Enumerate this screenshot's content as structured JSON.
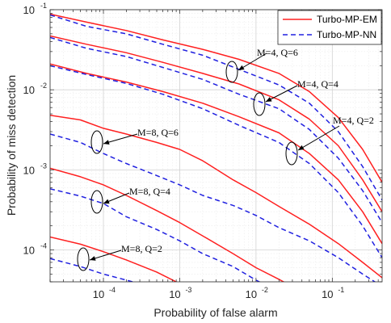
{
  "chart_data": {
    "type": "line",
    "title": "",
    "xlabel": "Probability of false alarm",
    "ylabel": "Probability of miss detection",
    "x_scale": "log",
    "y_scale": "log",
    "xlim": [
      2e-05,
      0.45
    ],
    "ylim": [
      4e-05,
      0.1
    ],
    "grid": true,
    "legend_position": "top-right",
    "x_ticks": [
      {
        "value": 0.0001,
        "base": "10",
        "exp": "-4"
      },
      {
        "value": 0.001,
        "base": "10",
        "exp": "-3"
      },
      {
        "value": 0.01,
        "base": "10",
        "exp": "-2"
      },
      {
        "value": 0.1,
        "base": "10",
        "exp": "-1"
      }
    ],
    "y_ticks": [
      {
        "value": 0.0001,
        "base": "10",
        "exp": "-4"
      },
      {
        "value": 0.001,
        "base": "10",
        "exp": "-3"
      },
      {
        "value": 0.01,
        "base": "10",
        "exp": "-2"
      },
      {
        "value": 0.1,
        "base": "10",
        "exp": "-1"
      }
    ],
    "legend": [
      {
        "label": "Turbo-MP-EM",
        "color": "#ff2020",
        "style": "solid"
      },
      {
        "label": "Turbo-MP-NN",
        "color": "#2020e0",
        "style": "dashed"
      }
    ],
    "series": [
      {
        "name": "Turbo-MP-EM",
        "config": "M=4, Q=6",
        "color": "#ff2020",
        "style": "solid",
        "x": [
          2e-05,
          6e-05,
          0.0002,
          0.0006,
          0.002,
          0.006,
          0.02,
          0.05,
          0.12,
          0.25,
          0.45
        ],
        "y": [
          0.088,
          0.07,
          0.055,
          0.042,
          0.032,
          0.024,
          0.016,
          0.0095,
          0.0045,
          0.0018,
          0.0007
        ]
      },
      {
        "name": "Turbo-MP-NN",
        "config": "M=4, Q=6",
        "color": "#2020e0",
        "style": "dashed",
        "x": [
          2e-05,
          6e-05,
          0.0002,
          0.0006,
          0.002,
          0.006,
          0.02,
          0.05,
          0.12,
          0.25,
          0.45
        ],
        "y": [
          0.086,
          0.062,
          0.05,
          0.037,
          0.027,
          0.018,
          0.0115,
          0.0068,
          0.003,
          0.0011,
          0.00042
        ]
      },
      {
        "name": "Turbo-MP-EM",
        "config": "M=4, Q=4",
        "color": "#ff2020",
        "style": "solid",
        "x": [
          2e-05,
          6e-05,
          0.0002,
          0.0006,
          0.002,
          0.006,
          0.02,
          0.05,
          0.12,
          0.25,
          0.45
        ],
        "y": [
          0.047,
          0.037,
          0.029,
          0.022,
          0.016,
          0.0118,
          0.0075,
          0.0043,
          0.002,
          0.00075,
          0.0003
        ]
      },
      {
        "name": "Turbo-MP-NN",
        "config": "M=4, Q=4",
        "color": "#2020e0",
        "style": "dashed",
        "x": [
          2e-05,
          6e-05,
          0.0002,
          0.0006,
          0.002,
          0.006,
          0.02,
          0.05,
          0.12,
          0.25,
          0.45
        ],
        "y": [
          0.045,
          0.033,
          0.026,
          0.019,
          0.0135,
          0.0088,
          0.0058,
          0.0032,
          0.0014,
          0.00055,
          0.00022
        ]
      },
      {
        "name": "Turbo-MP-EM",
        "config": "M=4, Q=2",
        "color": "#ff2020",
        "style": "solid",
        "x": [
          2e-05,
          6e-05,
          0.0002,
          0.0006,
          0.002,
          0.006,
          0.02,
          0.05,
          0.12,
          0.25,
          0.45
        ],
        "y": [
          0.021,
          0.016,
          0.0125,
          0.0095,
          0.0068,
          0.0046,
          0.0029,
          0.0016,
          0.00075,
          0.0003,
          0.00012
        ]
      },
      {
        "name": "Turbo-MP-NN",
        "config": "M=4, Q=2",
        "color": "#2020e0",
        "style": "dashed",
        "x": [
          2e-05,
          6e-05,
          0.0002,
          0.0006,
          0.002,
          0.006,
          0.02,
          0.05,
          0.12,
          0.25,
          0.45
        ],
        "y": [
          0.02,
          0.0155,
          0.012,
          0.0088,
          0.0058,
          0.0036,
          0.0022,
          0.0012,
          0.00052,
          0.0002,
          8e-05
        ]
      },
      {
        "name": "Turbo-MP-EM",
        "config": "M=8, Q=6",
        "color": "#ff2020",
        "style": "solid",
        "x": [
          2e-05,
          5e-05,
          0.0001,
          0.0002,
          0.0005,
          0.001,
          0.002,
          0.005,
          0.01,
          0.02,
          0.05,
          0.12,
          0.25,
          0.45
        ],
        "y": [
          0.0048,
          0.0042,
          0.0033,
          0.0028,
          0.0022,
          0.0018,
          0.0013,
          0.00075,
          0.00052,
          0.00035,
          0.00021,
          0.00012,
          7e-05,
          4.5e-05
        ]
      },
      {
        "name": "Turbo-MP-NN",
        "config": "M=8, Q=6",
        "color": "#2020e0",
        "style": "dashed",
        "x": [
          2e-05,
          5e-05,
          0.0001,
          0.0002,
          0.0005,
          0.001,
          0.002,
          0.005,
          0.01,
          0.02,
          0.05,
          0.12,
          0.25,
          0.45
        ],
        "y": [
          0.0028,
          0.0022,
          0.0016,
          0.0012,
          0.00085,
          0.00065,
          0.00048,
          0.00036,
          0.00027,
          0.00019,
          0.00013,
          8e-05,
          5e-05,
          3.5e-05
        ]
      },
      {
        "name": "Turbo-MP-EM",
        "config": "M=8, Q=4",
        "color": "#ff2020",
        "style": "solid",
        "x": [
          2e-05,
          5e-05,
          0.0001,
          0.0002,
          0.0005,
          0.001,
          0.002,
          0.005,
          0.01,
          0.02,
          0.04
        ],
        "y": [
          0.00105,
          0.00082,
          0.00065,
          0.00048,
          0.00031,
          0.00022,
          0.00015,
          9e-05,
          6e-05,
          4.3e-05,
          3e-05
        ]
      },
      {
        "name": "Turbo-MP-NN",
        "config": "M=8, Q=4",
        "color": "#2020e0",
        "style": "dashed",
        "x": [
          2e-05,
          5e-05,
          0.0001,
          0.0002,
          0.0005,
          0.001,
          0.002,
          0.005,
          0.01,
          0.02
        ],
        "y": [
          0.00058,
          0.00047,
          0.00038,
          0.00026,
          0.00018,
          0.00013,
          9e-05,
          6.2e-05,
          4.2e-05,
          3e-05
        ]
      },
      {
        "name": "Turbo-MP-EM",
        "config": "M=8, Q=2",
        "color": "#ff2020",
        "style": "solid",
        "x": [
          2e-05,
          5e-05,
          0.0001,
          0.0002,
          0.0005,
          0.001
        ],
        "y": [
          0.000145,
          0.000118,
          9.5e-05,
          7.5e-05,
          5.3e-05,
          3.8e-05
        ]
      },
      {
        "name": "Turbo-MP-NN",
        "config": "M=8, Q=2",
        "color": "#2020e0",
        "style": "dashed",
        "x": [
          2e-05,
          5e-05,
          0.0001,
          0.0002,
          0.0004
        ],
        "y": [
          7.8e-05,
          6.2e-05,
          5e-05,
          4.2e-05,
          3.5e-05
        ]
      }
    ],
    "annotations": [
      {
        "text": "M=4, Q=6",
        "ellipse_at": [
          0.0045,
          0.042
        ],
        "arrow_from": [
          0.0045,
          0.042
        ]
      },
      {
        "text": "M=4, Q=4",
        "ellipse_at": [
          0.012,
          0.0065
        ],
        "arrow_from": [
          0.012,
          0.0065
        ]
      },
      {
        "text": "M=4, Q=2",
        "ellipse_at": [
          0.029,
          0.0015
        ],
        "arrow_from": [
          0.029,
          0.0015
        ]
      },
      {
        "text": "M=8, Q=6",
        "ellipse_at": [
          8e-05,
          0.0023
        ],
        "arrow_from": [
          8e-05,
          0.0023
        ]
      },
      {
        "text": "M=8, Q=4",
        "ellipse_at": [
          8e-05,
          0.00042
        ],
        "arrow_from": [
          8e-05,
          0.00042
        ]
      },
      {
        "text": "M=8, Q=2",
        "ellipse_at": [
          6e-05,
          0.000101
        ],
        "arrow_from": [
          6e-05,
          0.000101
        ]
      }
    ]
  }
}
